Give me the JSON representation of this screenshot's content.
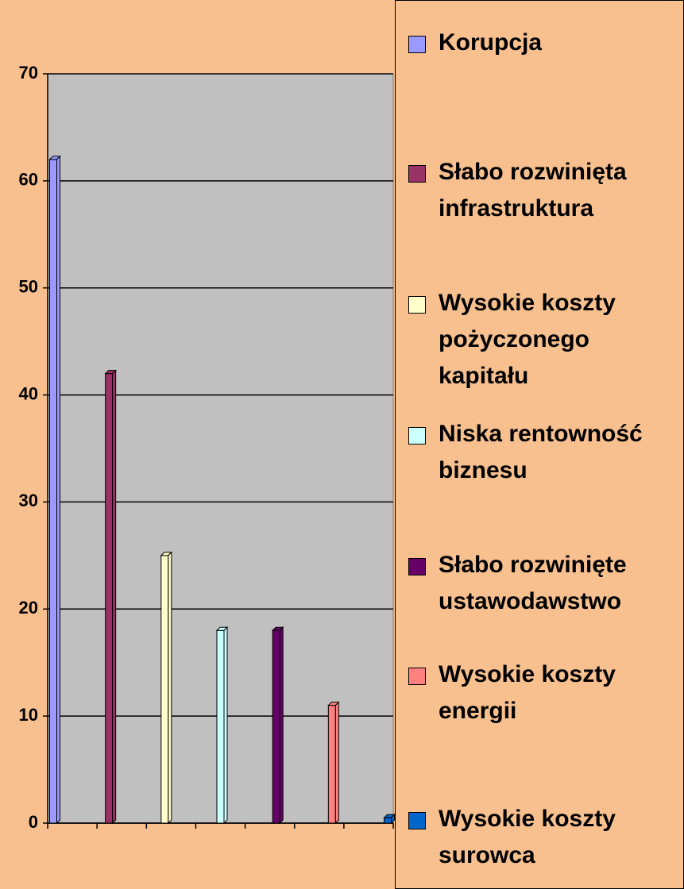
{
  "chart_data": {
    "type": "bar",
    "categories": [
      null
    ],
    "series": [
      {
        "name": "Korupcja",
        "color": "#9999ff",
        "values": [
          62
        ]
      },
      {
        "name": "Słabo rozwinięta infrastruktura",
        "color": "#993366",
        "values": [
          42
        ]
      },
      {
        "name": "Wysokie koszty pożyczonego kapitału",
        "color": "#ffffcc",
        "values": [
          25
        ]
      },
      {
        "name": "Niska rentowność biznesu",
        "color": "#ccffff",
        "values": [
          18
        ]
      },
      {
        "name": "Słabo rozwinięte ustawodawstwo",
        "color": "#660066",
        "values": [
          18
        ]
      },
      {
        "name": "Wysokie koszty energii",
        "color": "#ff8080",
        "values": [
          11
        ]
      },
      {
        "name": "Wysokie koszty surowca",
        "color": "#0066cc",
        "values": [
          0.5
        ]
      }
    ],
    "ylim": [
      0,
      70
    ],
    "yticks": [
      0,
      10,
      20,
      30,
      40,
      50,
      60,
      70
    ],
    "grid": true,
    "legend": "right"
  }
}
